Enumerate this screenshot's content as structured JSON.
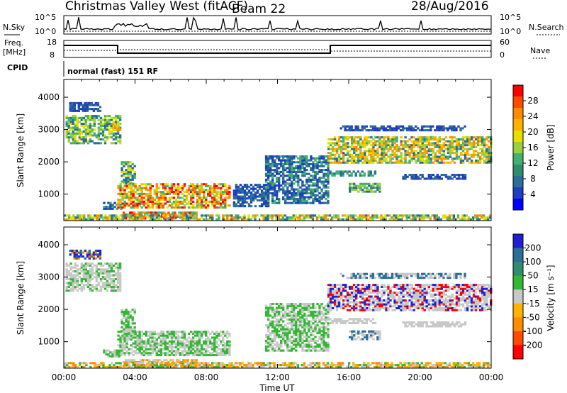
{
  "header": {
    "radar": "Christmas Valley West (fitACF)",
    "beam": "Beam 22",
    "date": "28/Aug/2016"
  },
  "strips": {
    "nsky_label": "N.Sky",
    "nsky_ticks": [
      "10^5",
      "10^0"
    ],
    "nsearch_label": "N.Search",
    "nsearch_ticks": [
      "10^5",
      "10^0"
    ],
    "freq_label_1": "Freq.",
    "freq_label_2": "[MHz]",
    "freq_ticks": [
      "18",
      "8"
    ],
    "nave_label": "Nave",
    "nave_ticks": [
      "60",
      "0"
    ],
    "cpid_label": "CPID",
    "cpid_value": "normal (fast) 151 RF"
  },
  "chart_data": [
    {
      "type": "heatmap",
      "name": "power",
      "ylabel": "Slant Range [km]",
      "yticks": [
        "4000",
        "3000",
        "2000",
        "1000"
      ],
      "xlabel": "Time UT",
      "xticks": [
        "00:00",
        "04:00",
        "08:00",
        "12:00",
        "16:00",
        "20:00",
        "00:00"
      ],
      "colorbar_label": "Power [dB]",
      "colorbar_ticks": [
        "28",
        "24",
        "20",
        "16",
        "12",
        "8",
        "4"
      ],
      "colorbar_colors": [
        "#ff0000",
        "#ff4a00",
        "#ff8c00",
        "#ffb200",
        "#e5e000",
        "#99d040",
        "#44b070",
        "#2f8c6e",
        "#2b6e96",
        "#1f3fc0",
        "#0000ff"
      ],
      "ylim": [
        180,
        4550
      ],
      "xlim_hours": [
        0,
        24
      ],
      "regions": [
        {
          "t0": 0.1,
          "t1": 3.2,
          "r0": 2550,
          "r1": 3450,
          "colors": [
            "#2b6e96",
            "#44b070",
            "#99d040",
            "#e5e000"
          ]
        },
        {
          "t0": 0.3,
          "t1": 2.0,
          "r0": 3550,
          "r1": 3800,
          "colors": [
            "#2b6e96",
            "#1f3fc0"
          ]
        },
        {
          "t0": 2.7,
          "t1": 3.1,
          "r0": 2900,
          "r1": 3200,
          "colors": [
            "#ff8c00",
            "#ffb200",
            "#e5e000"
          ]
        },
        {
          "t0": 2.2,
          "t1": 3.2,
          "r0": 520,
          "r1": 740,
          "colors": [
            "#2b6e96",
            "#44b070",
            "#1f3fc0"
          ]
        },
        {
          "t0": 3.0,
          "t1": 9.3,
          "r0": 560,
          "r1": 1320,
          "colors": [
            "#ff0000",
            "#ff4a00",
            "#ff8c00",
            "#ffb200",
            "#e5e000",
            "#99d040",
            "#44b070"
          ]
        },
        {
          "t0": 3.3,
          "t1": 7.5,
          "r0": 220,
          "r1": 420,
          "colors": [
            "#ff0000",
            "#ff4a00",
            "#ff8c00",
            "#44b070"
          ]
        },
        {
          "t0": 0.0,
          "t1": 24.0,
          "r0": 190,
          "r1": 330,
          "colors": [
            "#2b6e96",
            "#44b070",
            "#99d040",
            "#e5e000",
            "#ff8c00"
          ]
        },
        {
          "t0": 3.2,
          "t1": 4.0,
          "r0": 1300,
          "r1": 2000,
          "colors": [
            "#2b6e96",
            "#44b070",
            "#e5e000"
          ]
        },
        {
          "t0": 9.5,
          "t1": 11.5,
          "r0": 600,
          "r1": 1300,
          "colors": [
            "#2b6e96",
            "#1f3fc0"
          ]
        },
        {
          "t0": 11.3,
          "t1": 14.8,
          "r0": 700,
          "r1": 2200,
          "colors": [
            "#2b6e96",
            "#44b070",
            "#1f3fc0"
          ]
        },
        {
          "t0": 14.8,
          "t1": 24.0,
          "r0": 1950,
          "r1": 2750,
          "colors": [
            "#2b6e96",
            "#44b070",
            "#99d040",
            "#e5e000",
            "#ffb200",
            "#ff8c00"
          ]
        },
        {
          "t0": 15.5,
          "t1": 22.5,
          "r0": 2950,
          "r1": 3100,
          "colors": [
            "#2b6e96",
            "#1f3fc0"
          ]
        },
        {
          "t0": 14.9,
          "t1": 17.5,
          "r0": 1550,
          "r1": 1700,
          "colors": [
            "#2b6e96",
            "#44b070"
          ]
        },
        {
          "t0": 16.0,
          "t1": 17.8,
          "r0": 1050,
          "r1": 1350,
          "colors": [
            "#2b6e96",
            "#44b070",
            "#99d040"
          ]
        },
        {
          "t0": 19.0,
          "t1": 22.5,
          "r0": 1450,
          "r1": 1600,
          "colors": [
            "#2b6e96",
            "#1f3fc0"
          ]
        }
      ]
    },
    {
      "type": "heatmap",
      "name": "velocity",
      "ylabel": "Slant Range [km]",
      "yticks": [
        "4000",
        "3000",
        "2000",
        "1000"
      ],
      "xlabel": "Time UT",
      "xticks": [
        "00:00",
        "04:00",
        "08:00",
        "12:00",
        "16:00",
        "20:00",
        "00:00"
      ],
      "colorbar_label": "Velocity [m s⁻¹]",
      "colorbar_ticks": [
        "200",
        "100",
        "50",
        "15",
        "-15",
        "-50",
        "-100",
        "-200"
      ],
      "colorbar_colors": [
        "#2020d0",
        "#2b6e96",
        "#2f8c6e",
        "#33b833",
        "#c8c8c8",
        "#ffb200",
        "#ff8c00",
        "#ff4a00",
        "#ff0000"
      ],
      "ylim": [
        180,
        4550
      ],
      "xlim_hours": [
        0,
        24
      ],
      "regions": [
        {
          "t0": 0.1,
          "t1": 3.2,
          "r0": 2550,
          "r1": 3450,
          "colors": [
            "#c8c8c8",
            "#c8c8c8",
            "#c8c8c8",
            "#33b833"
          ]
        },
        {
          "t0": 0.3,
          "t1": 2.0,
          "r0": 3550,
          "r1": 3800,
          "colors": [
            "#2020d0",
            "#2b6e96",
            "#ff8c00"
          ]
        },
        {
          "t0": 3.0,
          "t1": 9.3,
          "r0": 560,
          "r1": 1320,
          "colors": [
            "#c8c8c8",
            "#c8c8c8",
            "#33b833",
            "#33b833"
          ]
        },
        {
          "t0": 2.2,
          "t1": 3.2,
          "r0": 520,
          "r1": 740,
          "colors": [
            "#33b833",
            "#c8c8c8"
          ]
        },
        {
          "t0": 3.3,
          "t1": 7.5,
          "r0": 220,
          "r1": 420,
          "colors": [
            "#ffb200",
            "#ff8c00",
            "#c8c8c8"
          ]
        },
        {
          "t0": 0.0,
          "t1": 24.0,
          "r0": 190,
          "r1": 330,
          "colors": [
            "#ffb200",
            "#33b833",
            "#c8c8c8",
            "#ff8c00"
          ]
        },
        {
          "t0": 3.2,
          "t1": 4.0,
          "r0": 1300,
          "r1": 2000,
          "colors": [
            "#c8c8c8",
            "#33b833"
          ]
        },
        {
          "t0": 11.3,
          "t1": 14.8,
          "r0": 700,
          "r1": 2200,
          "colors": [
            "#c8c8c8",
            "#33b833"
          ]
        },
        {
          "t0": 14.8,
          "t1": 24.0,
          "r0": 1950,
          "r1": 2750,
          "colors": [
            "#c8c8c8",
            "#c8c8c8",
            "#c8c8c8",
            "#2020d0",
            "#ff0000"
          ]
        },
        {
          "t0": 15.5,
          "t1": 22.5,
          "r0": 2950,
          "r1": 3100,
          "colors": [
            "#c8c8c8",
            "#2b6e96"
          ]
        },
        {
          "t0": 14.9,
          "t1": 17.5,
          "r0": 1550,
          "r1": 1700,
          "colors": [
            "#c8c8c8"
          ]
        },
        {
          "t0": 16.0,
          "t1": 17.8,
          "r0": 1050,
          "r1": 1350,
          "colors": [
            "#c8c8c8",
            "#2b6e96"
          ]
        },
        {
          "t0": 19.0,
          "t1": 22.5,
          "r0": 1450,
          "r1": 1600,
          "colors": [
            "#c8c8c8"
          ]
        }
      ]
    }
  ]
}
